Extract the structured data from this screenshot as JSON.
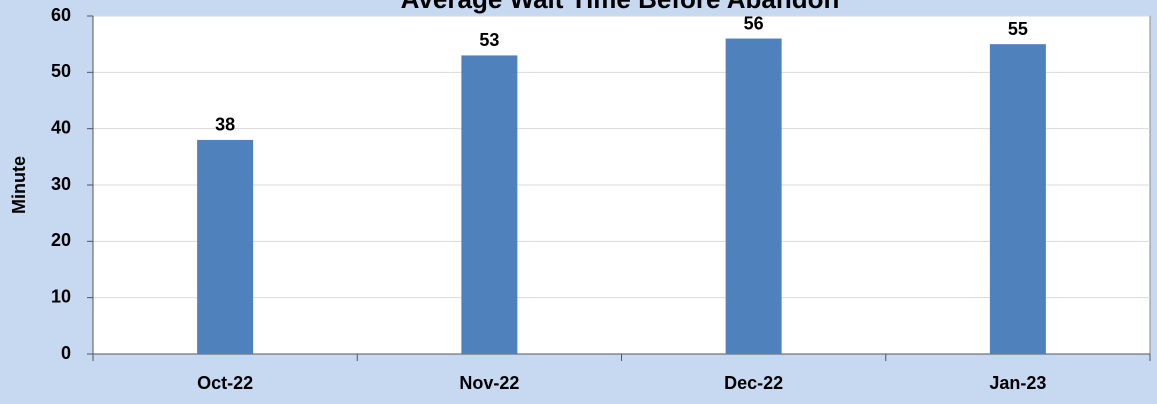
{
  "chart_data": {
    "type": "bar",
    "title": "Average Wait Time Before Abandon",
    "y_label": "Minute",
    "categories": [
      "Oct-22",
      "Nov-22",
      "Dec-22",
      "Jan-23"
    ],
    "values": [
      38,
      53,
      56,
      55
    ],
    "color": "#4f81bd",
    "ylim": [
      0,
      60
    ],
    "yticks": [
      0,
      10,
      20,
      30,
      40,
      50,
      60
    ],
    "grid": true
  }
}
